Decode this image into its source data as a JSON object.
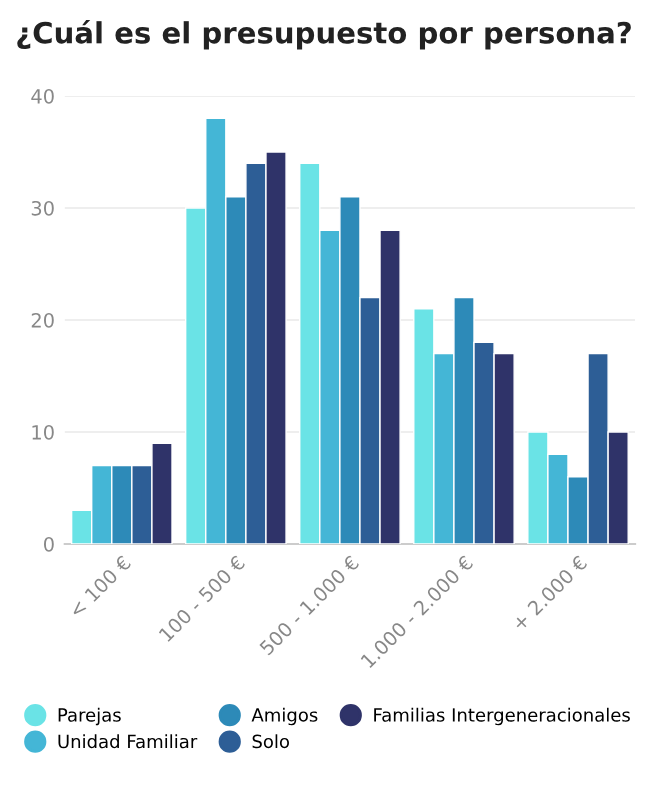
{
  "chart_data": {
    "type": "bar",
    "title": "¿Cuál es el presupuesto por persona?",
    "categories": [
      "< 100 €",
      "100 - 500 €",
      "500 - 1.000 €",
      "1.000 - 2.000 €",
      "+ 2.000 €"
    ],
    "series": [
      {
        "name": "Parejas",
        "color": "#6ae3e6",
        "values": [
          3,
          30,
          34,
          21,
          10
        ]
      },
      {
        "name": "Unidad Familiar",
        "color": "#44b6d6",
        "values": [
          7,
          38,
          28,
          17,
          8
        ]
      },
      {
        "name": "Amigos",
        "color": "#2d8ab8",
        "values": [
          7,
          31,
          31,
          22,
          6
        ]
      },
      {
        "name": "Solo",
        "color": "#2d5e96",
        "values": [
          7,
          34,
          22,
          18,
          17
        ]
      },
      {
        "name": "Familias Intergeneracionales",
        "color": "#2f3369",
        "values": [
          9,
          35,
          28,
          17,
          10
        ]
      }
    ],
    "ylim": [
      0,
      40
    ],
    "yticks": [
      0,
      10,
      20,
      30,
      40
    ],
    "grid": "y",
    "legend": "bottom"
  }
}
